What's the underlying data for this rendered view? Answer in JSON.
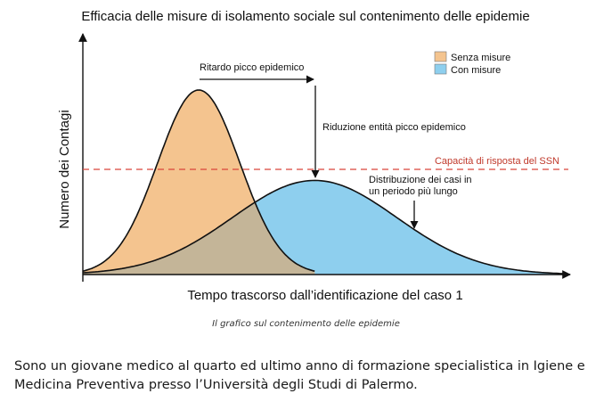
{
  "chart_data": {
    "type": "area",
    "title": "Efficacia delle misure di isolamento sociale sul contenimento delle epidemie",
    "xlabel": "Tempo trascorso dall’identificazione del caso 1",
    "ylabel": "Numero dei Contagi",
    "xlim": [
      0,
      100
    ],
    "ylim": [
      0,
      100
    ],
    "series": [
      {
        "name": "Senza misure",
        "color": "#f4c48f",
        "curve": {
          "shape": "gaussian",
          "peak_x": 24,
          "peak_y": 100,
          "spread": 8.5,
          "start": 0,
          "end": 48
        }
      },
      {
        "name": "Con misure",
        "color": "#8ecfee",
        "curve": {
          "shape": "gaussian",
          "peak_x": 48,
          "peak_y": 51,
          "spread": 17,
          "start": 0,
          "end": 100
        }
      }
    ],
    "overlap_color": "#c4b598",
    "threshold": {
      "y": 57,
      "label": "Capacità di risposta del SSN",
      "color": "#d9453b"
    },
    "annotations": [
      {
        "id": "delay",
        "text": "Ritardo picco epidemico"
      },
      {
        "id": "reduction",
        "text": "Riduzione entità picco epidemico"
      },
      {
        "id": "distribution",
        "lines": [
          "Distribuzione dei casi in",
          "un periodo più lungo"
        ]
      }
    ],
    "legend": {
      "position": "top-right"
    },
    "grid": false
  },
  "caption": "Il grafico sul contenimento delle epidemie",
  "paragraph": "Sono un giovane medico al quarto ed ultimo anno di formazione specialistica in Igiene e Medicina Preventiva presso l’Università degli Studi di Palermo."
}
